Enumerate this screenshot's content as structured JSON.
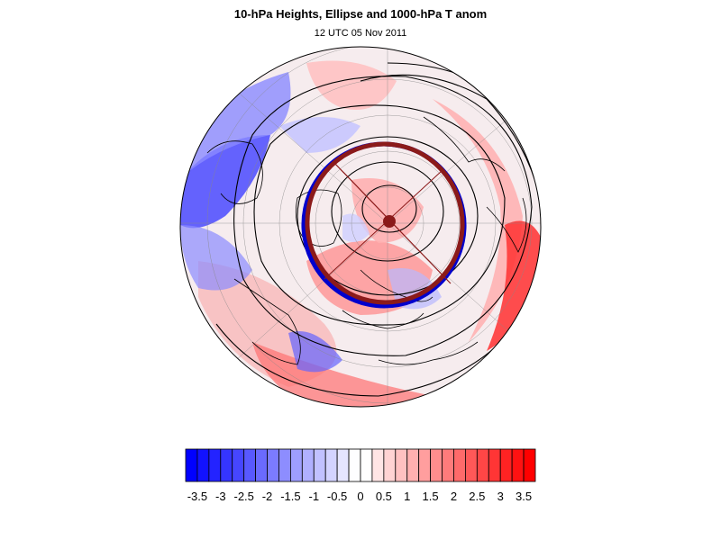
{
  "title": "10-hPa Heights, Ellipse and 1000-hPa T anom",
  "subtitle": "12 UTC 05 Nov 2011",
  "colorbar": {
    "labels": [
      "-3.5",
      "-3",
      "-2.5",
      "-2",
      "-1.5",
      "-1",
      "-0.5",
      "0",
      "0.5",
      "1",
      "1.5",
      "2",
      "2.5",
      "3",
      "3.5"
    ],
    "min": -3.75,
    "max": 3.75,
    "step": 0.25,
    "cold_color": "#0000ff",
    "warm_color": "#ff0000"
  },
  "map": {
    "projection": "north-polar-stereographic",
    "ellipse_outer_color": "#8b1a1a",
    "ellipse_inner_color": "#0000cd",
    "contour_color": "#000000"
  }
}
